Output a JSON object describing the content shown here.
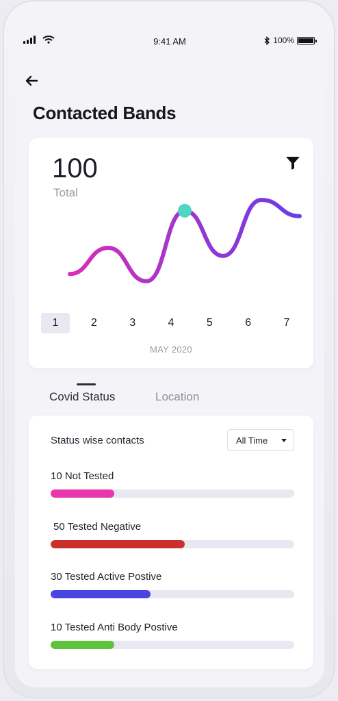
{
  "status_bar": {
    "time": "9:41 AM",
    "battery": "100%"
  },
  "header": {
    "title": "Contacted Bands"
  },
  "summary": {
    "total_value": "100",
    "total_label": "Total"
  },
  "chart_data": {
    "type": "line",
    "x": [
      1,
      2,
      3,
      4,
      5,
      6,
      7
    ],
    "categories": [
      "1",
      "2",
      "3",
      "4",
      "5",
      "6",
      "7"
    ],
    "values": [
      18,
      47,
      10,
      88,
      38,
      100,
      82
    ],
    "highlight_index": 3,
    "selected_category": "1",
    "xlabel": "MAY 2020",
    "ylabel": "",
    "title": "",
    "grid": false,
    "gradient_colors": [
      "#d62fb6",
      "#6a3ce6"
    ],
    "marker_color": "#52d6c4"
  },
  "tabs": [
    {
      "label": "Covid Status",
      "active": true
    },
    {
      "label": "Location",
      "active": false
    }
  ],
  "status": {
    "heading": "Status wise contacts",
    "time_filter": "All Time",
    "items": [
      {
        "label": "10 Not Tested",
        "percent": 26,
        "color": "#e637ad"
      },
      {
        "label": "50 Tested Negative",
        "percent": 55,
        "color": "#c9312b"
      },
      {
        "label": "30 Tested Active Postive",
        "percent": 41,
        "color": "#4a45e0"
      },
      {
        "label": "10 Tested Anti Body Postive",
        "percent": 26,
        "color": "#5fc23d"
      }
    ]
  },
  "icons": {
    "back": "back-arrow-icon",
    "filter": "filter-icon",
    "signal": "signal-icon",
    "wifi": "wifi-icon",
    "bluetooth": "bluetooth-icon",
    "battery": "battery-icon",
    "dropdown": "chevron-down-icon"
  }
}
